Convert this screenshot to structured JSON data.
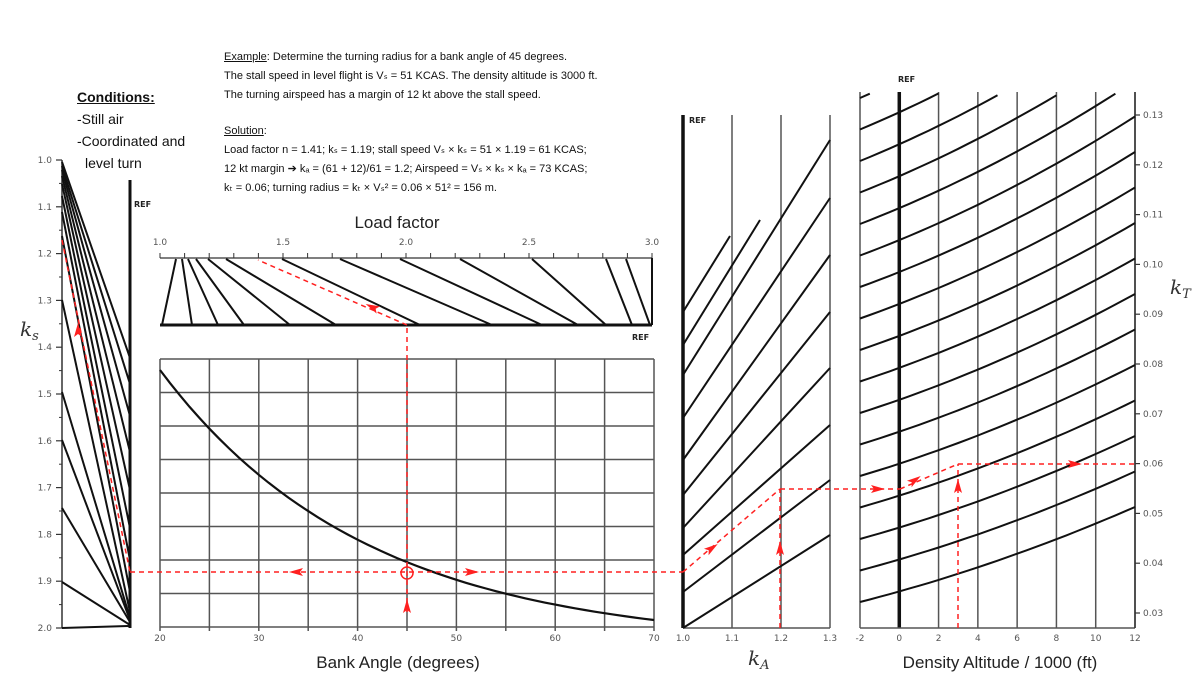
{
  "conditions": {
    "heading": "Conditions:",
    "lines": [
      "-Still air",
      "-Coordinated and",
      "  level turn"
    ]
  },
  "example": {
    "heading": "Example",
    "line1": ": Determine the turning radius for a bank angle of 45 degrees.",
    "line2": "The stall speed in level flight is Vₛ = 51 KCAS. The density altitude is 3000 ft.",
    "line3": "The turning airspeed has a margin of 12 kt above the stall speed."
  },
  "solution": {
    "heading": "Solution",
    "line1": "Load factor n = 1.41; kₛ = 1.19; stall speed Vₛ × kₛ = 51 × 1.19 = 61 KCAS;",
    "line2": "12 kt margin ➔ kₐ = (61 + 12)/61 = 1.2; Airspeed = Vₛ × kₛ × kₐ = 73 KCAS;",
    "line3": "kₜ = 0.06; turning radius = kₜ × Vₛ² = 0.06 × 51² = 156 m."
  },
  "labels": {
    "ref": "REF",
    "load_factor_title": "Load factor",
    "bank_angle_title": "Bank Angle (degrees)",
    "ks_label": "k",
    "ks_sub": "s",
    "ka_label": "k",
    "ka_sub": "A",
    "kt_label": "k",
    "kt_sub": "T",
    "density_title": "Density Altitude / 1000 (ft)"
  },
  "colors": {
    "line": "#111111",
    "grid": "#555555",
    "path": "#ff2020"
  },
  "chart_data": [
    {
      "type": "line",
      "title": "k_s scale",
      "ylabel": "k_s",
      "ticks": [
        "1.0",
        "1.1",
        "1.2",
        "1.3",
        "1.4",
        "1.5",
        "1.6",
        "1.7",
        "1.8",
        "1.9",
        "2.0"
      ],
      "ylim": [
        1.0,
        2.0
      ],
      "example_value": 1.19
    },
    {
      "type": "line",
      "title": "Load factor",
      "ticks": [
        "1.0",
        "1.5",
        "2.0",
        "2.5",
        "3.0"
      ],
      "xlim": [
        1.0,
        3.0
      ],
      "example_value": 1.41
    },
    {
      "type": "line",
      "title": "Bank angle curve",
      "xlabel": "Bank Angle (degrees)",
      "ticks": [
        "20",
        "30",
        "40",
        "50",
        "60",
        "70"
      ],
      "xlim": [
        20,
        70
      ],
      "x": [
        20,
        25,
        30,
        35,
        40,
        45,
        50,
        55,
        60,
        65,
        70
      ],
      "grid": true,
      "example_value": 45
    },
    {
      "type": "line",
      "title": "k_A correction",
      "xlabel": "k_A",
      "ticks": [
        "1.0",
        "1.1",
        "1.2",
        "1.3"
      ],
      "xlim": [
        1.0,
        1.3
      ],
      "example_value": 1.2
    },
    {
      "type": "line",
      "title": "Density altitude correction",
      "xlabel": "Density Altitude / 1000 (ft)",
      "ylabel": "k_T",
      "ticks": [
        "-2",
        "0",
        "2",
        "4",
        "6",
        "8",
        "10",
        "12"
      ],
      "xlim": [
        -2,
        12
      ],
      "yticks": [
        "0.13",
        "0.12",
        "0.11",
        "0.10",
        "0.09",
        "0.08",
        "0.07",
        "0.06",
        "0.05",
        "0.04",
        "0.03"
      ],
      "ylim": [
        0.03,
        0.13
      ],
      "example_x": 3,
      "example_value": 0.06
    }
  ]
}
